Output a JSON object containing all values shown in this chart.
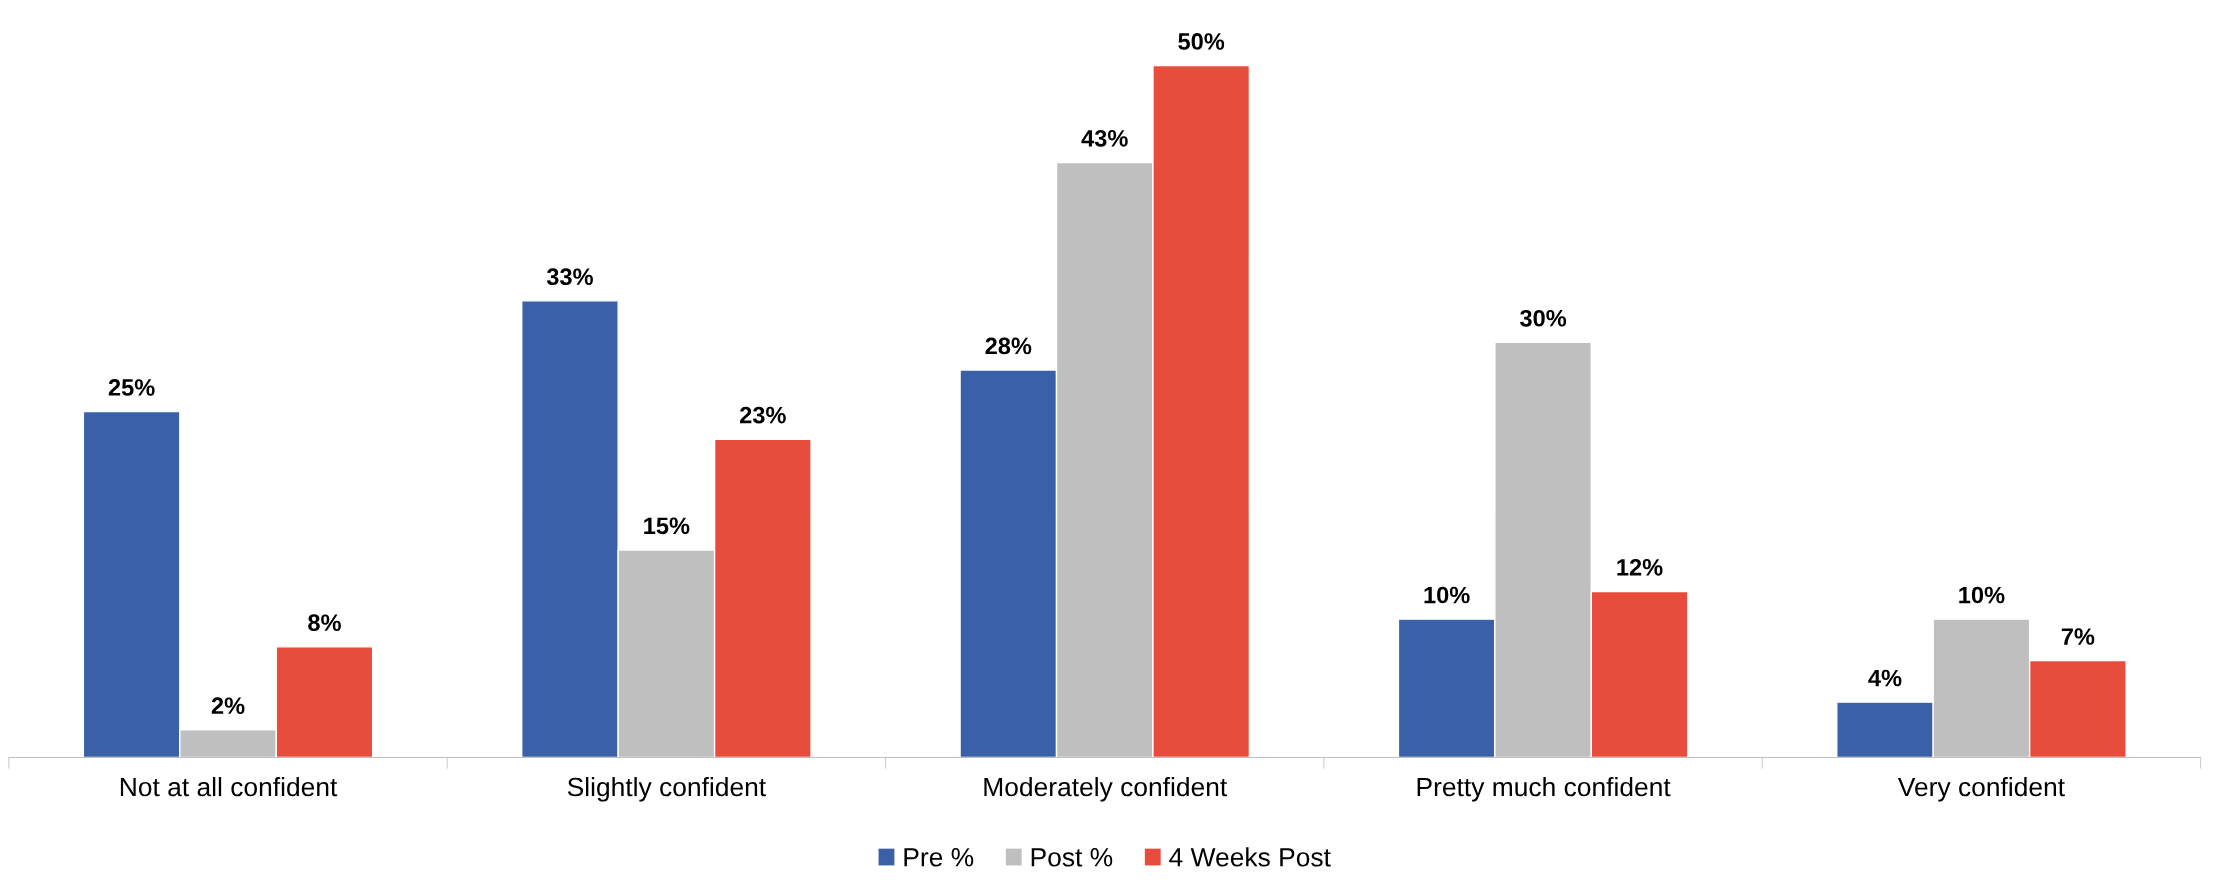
{
  "chart_data": {
    "type": "bar",
    "categories": [
      "Not at all confident",
      "Slightly confident",
      "Moderately confident",
      "Pretty much confident",
      "Very confident"
    ],
    "series": [
      {
        "name": "Pre %",
        "color": "#3a60a8",
        "values": [
          25,
          33,
          28,
          10,
          4
        ],
        "value_labels": [
          "25%",
          "33%",
          "28%",
          "10%",
          "4%"
        ]
      },
      {
        "name": "Post %",
        "color": "#bfbfbf",
        "values": [
          2,
          15,
          43,
          30,
          10
        ],
        "value_labels": [
          "2%",
          "15%",
          "43%",
          "30%",
          "10%"
        ]
      },
      {
        "name": "4 Weeks Post",
        "color": "#e84c3d",
        "values": [
          8,
          23,
          50,
          12,
          7
        ],
        "value_labels": [
          "8%",
          "23%",
          "50%",
          "12%",
          "7%"
        ]
      }
    ],
    "legend": "bottom",
    "grid": false
  }
}
